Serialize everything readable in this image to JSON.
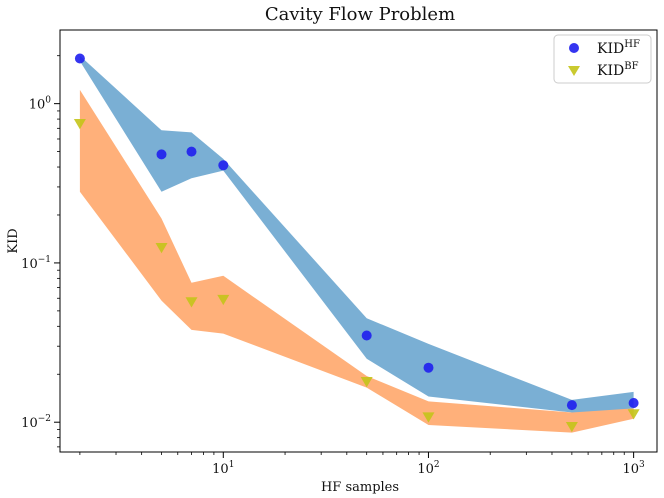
{
  "chart_data": {
    "type": "scatter",
    "title": "Cavity Flow Problem",
    "xlabel": "HF samples",
    "ylabel": "KID",
    "xscale": "log",
    "yscale": "log",
    "xlim": [
      1.6,
      1300
    ],
    "ylim": [
      0.0065,
      2.9
    ],
    "x_ticks": [
      {
        "value": 10,
        "base": "10",
        "exp": "1"
      },
      {
        "value": 100,
        "base": "10",
        "exp": "2"
      },
      {
        "value": 1000,
        "base": "10",
        "exp": "3"
      }
    ],
    "y_ticks": [
      {
        "value": 0.01,
        "base": "10",
        "exp": "−2"
      },
      {
        "value": 0.1,
        "base": "10",
        "exp": "−1"
      },
      {
        "value": 1,
        "base": "10",
        "exp": "0"
      }
    ],
    "grid": false,
    "legend_position": "top-right",
    "series": [
      {
        "name": "KID",
        "name_sup": "HF",
        "marker": "circle",
        "color": "#1f1fee",
        "band_color": "#7aafd4",
        "x": [
          2,
          5,
          7,
          10,
          50,
          100,
          500,
          1000
        ],
        "y": [
          1.92,
          0.48,
          0.5,
          0.41,
          0.035,
          0.022,
          0.0128,
          0.0132
        ],
        "band_upper": [
          2.0,
          0.68,
          0.66,
          0.45,
          0.045,
          0.031,
          0.0138,
          0.0155
        ],
        "band_lower": [
          1.85,
          0.28,
          0.34,
          0.38,
          0.025,
          0.0145,
          0.0115,
          0.0116
        ]
      },
      {
        "name": "KID",
        "name_sup": "BF",
        "marker": "triangle-down",
        "color": "#c4c41a",
        "band_color": "#ffb07a",
        "x": [
          2,
          5,
          7,
          10,
          50,
          100,
          500,
          1000
        ],
        "y": [
          0.75,
          0.125,
          0.057,
          0.059,
          0.018,
          0.0108,
          0.0094,
          0.0113
        ],
        "band_upper": [
          1.22,
          0.19,
          0.075,
          0.083,
          0.0195,
          0.0135,
          0.0115,
          0.0122
        ],
        "band_lower": [
          0.28,
          0.058,
          0.038,
          0.036,
          0.0165,
          0.0096,
          0.0086,
          0.0105
        ]
      }
    ]
  }
}
